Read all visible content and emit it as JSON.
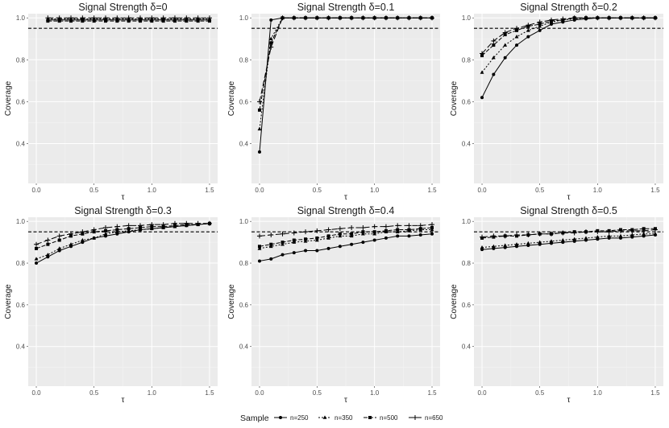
{
  "chart_data": {
    "type": "line",
    "ylabel": "Coverage",
    "xlabel": "τ",
    "xlim": [
      -0.07,
      1.57
    ],
    "ylim": [
      0.21,
      1.02
    ],
    "xticks": [
      "0.0",
      "0.5",
      "1.0",
      "1.5"
    ],
    "xtick_values": [
      0,
      0.5,
      1.0,
      1.5
    ],
    "yticks": [
      "0.4",
      "0.6",
      "0.8",
      "1.0"
    ],
    "ytick_values": [
      0.4,
      0.6,
      0.8,
      1.0
    ],
    "reference_line": 0.95,
    "legend": {
      "title": "Sample",
      "position": "bottom",
      "entries": [
        "n=250",
        "n=350",
        "n=500",
        "n=650"
      ]
    },
    "x": [
      0,
      0.1,
      0.2,
      0.3,
      0.4,
      0.5,
      0.6,
      0.7,
      0.8,
      0.9,
      1.0,
      1.1,
      1.2,
      1.3,
      1.4,
      1.5
    ],
    "panels": [
      {
        "title": "Signal Strength δ=0",
        "series": [
          {
            "name": "n=250",
            "values": [
              null,
              0.99,
              0.99,
              0.99,
              0.99,
              0.99,
              0.99,
              0.99,
              0.99,
              0.99,
              0.99,
              0.99,
              0.99,
              0.99,
              0.99,
              0.99
            ]
          },
          {
            "name": "n=350",
            "values": [
              null,
              0.995,
              0.995,
              0.995,
              0.995,
              0.995,
              0.995,
              0.995,
              0.995,
              0.995,
              0.995,
              0.995,
              0.995,
              0.995,
              0.995,
              0.995
            ]
          },
          {
            "name": "n=500",
            "values": [
              null,
              0.985,
              0.985,
              0.985,
              0.985,
              0.985,
              0.985,
              0.985,
              0.985,
              0.985,
              0.985,
              0.985,
              0.985,
              0.985,
              0.985,
              0.985
            ]
          },
          {
            "name": "n=650",
            "values": [
              null,
              1.0,
              1.0,
              1.0,
              1.0,
              1.0,
              1.0,
              1.0,
              1.0,
              1.0,
              1.0,
              1.0,
              1.0,
              1.0,
              1.0,
              1.0
            ]
          }
        ]
      },
      {
        "title": "Signal Strength δ=0.1",
        "series": [
          {
            "name": "n=250",
            "values": [
              0.36,
              0.99,
              1.0,
              1.0,
              1.0,
              1.0,
              1.0,
              1.0,
              1.0,
              1.0,
              1.0,
              1.0,
              1.0,
              1.0,
              1.0,
              1.0
            ]
          },
          {
            "name": "n=350",
            "values": [
              0.47,
              0.9,
              1.0,
              1.0,
              1.0,
              1.0,
              1.0,
              1.0,
              1.0,
              1.0,
              1.0,
              1.0,
              1.0,
              1.0,
              1.0,
              1.0
            ]
          },
          {
            "name": "n=500",
            "values": [
              0.56,
              0.88,
              1.0,
              1.0,
              1.0,
              1.0,
              1.0,
              1.0,
              1.0,
              1.0,
              1.0,
              1.0,
              1.0,
              1.0,
              1.0,
              1.0
            ]
          },
          {
            "name": "n=650",
            "values": [
              0.6,
              0.86,
              1.0,
              1.0,
              1.0,
              1.0,
              1.0,
              1.0,
              1.0,
              1.0,
              1.0,
              1.0,
              1.0,
              1.0,
              1.0,
              1.0
            ]
          }
        ]
      },
      {
        "title": "Signal Strength δ=0.2",
        "series": [
          {
            "name": "n=250",
            "values": [
              0.62,
              0.73,
              0.81,
              0.87,
              0.91,
              0.94,
              0.97,
              0.98,
              0.99,
              0.995,
              1.0,
              1.0,
              1.0,
              1.0,
              1.0,
              1.0
            ]
          },
          {
            "name": "n=350",
            "values": [
              0.74,
              0.81,
              0.87,
              0.91,
              0.94,
              0.96,
              0.98,
              0.99,
              0.995,
              1.0,
              1.0,
              1.0,
              1.0,
              1.0,
              1.0,
              1.0
            ]
          },
          {
            "name": "n=500",
            "values": [
              0.82,
              0.87,
              0.92,
              0.94,
              0.96,
              0.97,
              0.985,
              0.99,
              1.0,
              1.0,
              1.0,
              1.0,
              1.0,
              1.0,
              1.0,
              1.0
            ]
          },
          {
            "name": "n=650",
            "values": [
              0.83,
              0.89,
              0.93,
              0.95,
              0.965,
              0.98,
              0.99,
              0.995,
              1.0,
              1.0,
              1.0,
              1.0,
              1.0,
              1.0,
              1.0,
              1.0
            ]
          }
        ]
      },
      {
        "title": "Signal Strength δ=0.3",
        "series": [
          {
            "name": "n=250",
            "values": [
              0.8,
              0.83,
              0.86,
              0.88,
              0.9,
              0.92,
              0.93,
              0.94,
              0.95,
              0.96,
              0.965,
              0.97,
              0.975,
              0.98,
              0.985,
              0.99
            ]
          },
          {
            "name": "n=350",
            "values": [
              0.82,
              0.84,
              0.87,
              0.89,
              0.91,
              0.92,
              0.94,
              0.95,
              0.955,
              0.96,
              0.965,
              0.97,
              0.975,
              0.98,
              0.985,
              0.99
            ]
          },
          {
            "name": "n=500",
            "values": [
              0.87,
              0.89,
              0.91,
              0.93,
              0.94,
              0.95,
              0.955,
              0.96,
              0.965,
              0.97,
              0.975,
              0.975,
              0.98,
              0.985,
              0.985,
              0.99
            ]
          },
          {
            "name": "n=650",
            "values": [
              0.89,
              0.91,
              0.93,
              0.94,
              0.95,
              0.96,
              0.97,
              0.975,
              0.98,
              0.98,
              0.985,
              0.985,
              0.99,
              0.99,
              0.99,
              0.99
            ]
          }
        ]
      },
      {
        "title": "Signal Strength δ=0.4",
        "series": [
          {
            "name": "n=250",
            "values": [
              0.81,
              0.82,
              0.84,
              0.85,
              0.86,
              0.86,
              0.87,
              0.88,
              0.89,
              0.9,
              0.91,
              0.92,
              0.93,
              0.93,
              0.935,
              0.94
            ]
          },
          {
            "name": "n=350",
            "values": [
              0.87,
              0.88,
              0.89,
              0.9,
              0.905,
              0.91,
              0.92,
              0.93,
              0.93,
              0.94,
              0.94,
              0.95,
              0.95,
              0.955,
              0.96,
              0.96
            ]
          },
          {
            "name": "n=500",
            "values": [
              0.88,
              0.89,
              0.9,
              0.91,
              0.915,
              0.92,
              0.93,
              0.94,
              0.94,
              0.95,
              0.95,
              0.955,
              0.96,
              0.96,
              0.965,
              0.97
            ]
          },
          {
            "name": "n=650",
            "values": [
              0.93,
              0.935,
              0.94,
              0.945,
              0.95,
              0.955,
              0.96,
              0.965,
              0.97,
              0.97,
              0.975,
              0.975,
              0.98,
              0.98,
              0.98,
              0.985
            ]
          }
        ]
      },
      {
        "title": "Signal Strength δ=0.5",
        "series": [
          {
            "name": "n=250",
            "values": [
              0.865,
              0.87,
              0.875,
              0.88,
              0.885,
              0.89,
              0.895,
              0.9,
              0.905,
              0.91,
              0.915,
              0.92,
              0.92,
              0.925,
              0.93,
              0.935
            ]
          },
          {
            "name": "n=350",
            "values": [
              0.875,
              0.88,
              0.885,
              0.89,
              0.895,
              0.9,
              0.905,
              0.91,
              0.915,
              0.92,
              0.925,
              0.93,
              0.93,
              0.935,
              0.94,
              0.94
            ]
          },
          {
            "name": "n=500",
            "values": [
              0.92,
              0.925,
              0.93,
              0.93,
              0.935,
              0.94,
              0.94,
              0.945,
              0.95,
              0.95,
              0.955,
              0.955,
              0.96,
              0.96,
              0.965,
              0.965
            ]
          },
          {
            "name": "n=650",
            "values": [
              0.925,
              0.93,
              0.93,
              0.935,
              0.935,
              0.94,
              0.94,
              0.945,
              0.945,
              0.95,
              0.95,
              0.95,
              0.955,
              0.955,
              0.955,
              0.96
            ]
          }
        ]
      }
    ]
  }
}
